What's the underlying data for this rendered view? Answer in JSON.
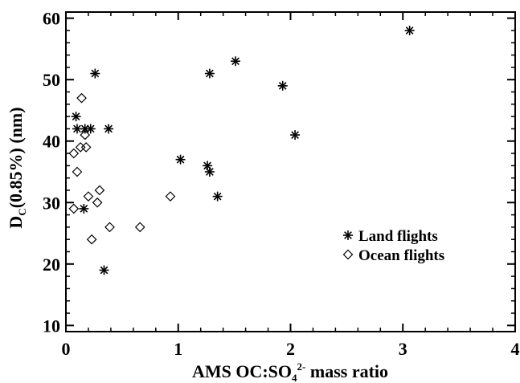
{
  "chart_data": {
    "type": "scatter",
    "xlabel": {
      "prefix": "AMS OC:SO",
      "subscript": "4",
      "superscript": "2-",
      "suffix": " mass ratio"
    },
    "ylabel": {
      "prefix": "D",
      "subscript": "C",
      "suffix": "(0.85%) (nm)"
    },
    "xlim": [
      0,
      4
    ],
    "ylim": [
      9,
      61
    ],
    "xticks": [
      0,
      1,
      2,
      3,
      4
    ],
    "yticks": [
      10,
      20,
      30,
      40,
      50,
      60
    ],
    "grid": false,
    "legend_position": "right",
    "series": [
      {
        "name": "Land flights",
        "marker": "asterisk",
        "points": [
          [
            0.09,
            44
          ],
          [
            0.1,
            42
          ],
          [
            0.17,
            42
          ],
          [
            0.22,
            42
          ],
          [
            0.26,
            51
          ],
          [
            0.16,
            29
          ],
          [
            0.34,
            19
          ],
          [
            0.38,
            42
          ],
          [
            1.02,
            37
          ],
          [
            1.26,
            36
          ],
          [
            1.28,
            35
          ],
          [
            1.28,
            51
          ],
          [
            1.35,
            31
          ],
          [
            1.51,
            53
          ],
          [
            1.93,
            49
          ],
          [
            2.04,
            41
          ],
          [
            3.06,
            58
          ]
        ]
      },
      {
        "name": "Ocean flights",
        "marker": "diamond",
        "points": [
          [
            0.14,
            47
          ],
          [
            0.07,
            38
          ],
          [
            0.1,
            35
          ],
          [
            0.13,
            39
          ],
          [
            0.18,
            39
          ],
          [
            0.17,
            41
          ],
          [
            0.07,
            29
          ],
          [
            0.2,
            31
          ],
          [
            0.23,
            24
          ],
          [
            0.28,
            30
          ],
          [
            0.3,
            32
          ],
          [
            0.39,
            26
          ],
          [
            0.66,
            26
          ],
          [
            0.93,
            31
          ]
        ]
      }
    ]
  }
}
